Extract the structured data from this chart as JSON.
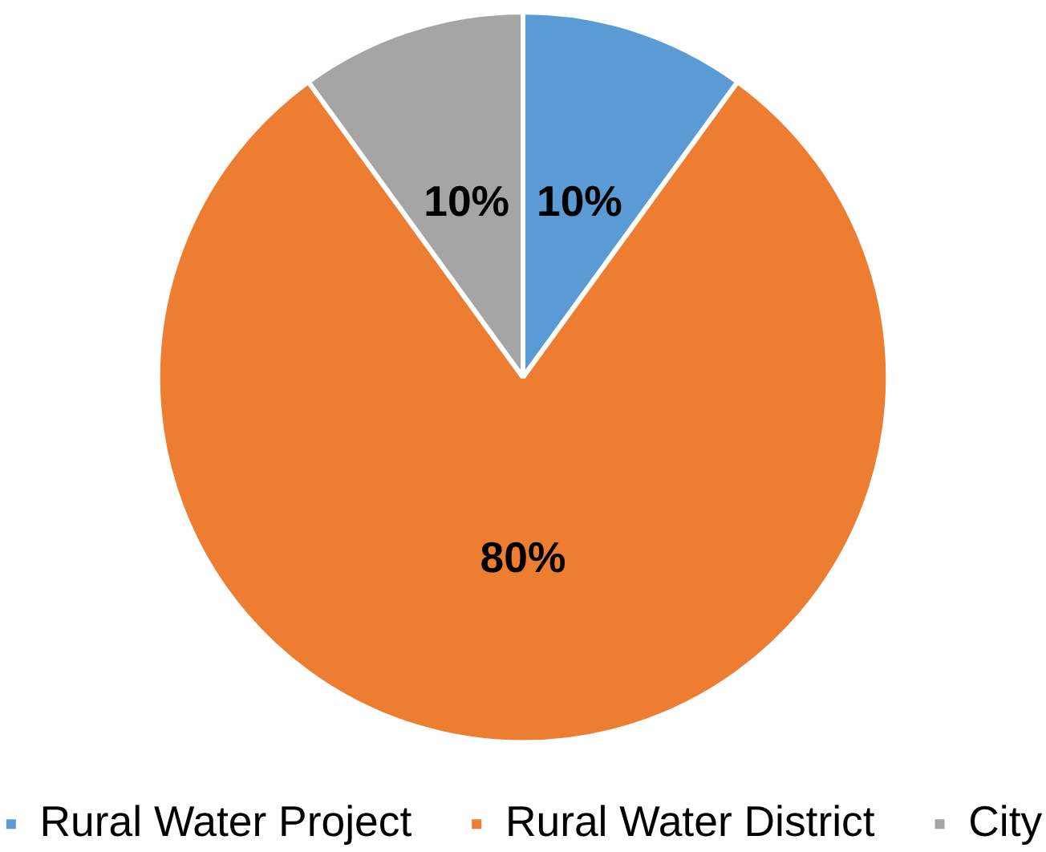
{
  "chart_data": {
    "type": "pie",
    "categories": [
      "Rural Water Project",
      "Rural Water District",
      "City"
    ],
    "values": [
      10,
      80,
      10
    ],
    "colors": [
      "#5b9bd5",
      "#ed7d31",
      "#a5a5a5"
    ],
    "value_labels": [
      "10%",
      "80%",
      "10%"
    ],
    "legend": "bottom"
  }
}
